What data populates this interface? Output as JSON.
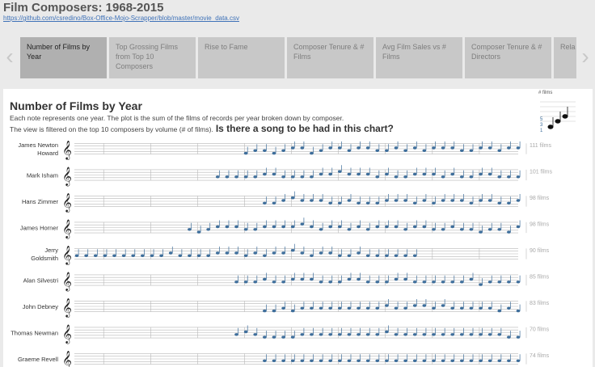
{
  "header": {
    "title": "Film Composers: 1968-2015",
    "link": "https://github.com/csredino/Box-Office-Mojo-Scrapper/blob/master/movie_data.csv"
  },
  "nav": {
    "prev_icon": "chevron-left-icon",
    "next_icon": "chevron-right-icon"
  },
  "tabs": [
    {
      "label": "Number of Films by Year",
      "active": true
    },
    {
      "label": "Top Grossing Films from Top 10 Composers",
      "active": false
    },
    {
      "label": "Rise to Fame",
      "active": false
    },
    {
      "label": "Composer Tenure & # Films",
      "active": false
    },
    {
      "label": "Avg Film Sales vs # Films",
      "active": false
    },
    {
      "label": "Composer Tenure & # Directors",
      "active": false
    },
    {
      "label": "Rela",
      "active": false
    }
  ],
  "viz": {
    "title": "Number of Films by Year",
    "subtitle1": "Each note represents one year. The plot is the sum of the films of records per year broken down by composer.",
    "subtitle2": "The view is filtered on the top 10 composers by volume (# of films).",
    "question": "Is there a song to be had in this chart?",
    "legend_title": "# films",
    "legend_ticks": [
      "5",
      "3",
      "1"
    ]
  },
  "colors": {
    "note": "#3e6e9b",
    "staff": "#b7b7b7",
    "accent": "#b0b0b0"
  },
  "chart_data": {
    "type": "scatter",
    "x_label": "",
    "y_label": "",
    "x_range": [
      1968,
      2015
    ],
    "series": [
      {
        "name": "James Newton Howard",
        "total_label": "111 films",
        "first_year": 1986,
        "last_year": 2015,
        "values": [
          1,
          2,
          2,
          1,
          2,
          3,
          3,
          1,
          2,
          3,
          3,
          2,
          3,
          3,
          2,
          2,
          3,
          2,
          3,
          2,
          3,
          3,
          3,
          2,
          2,
          3,
          3,
          2,
          3,
          3
        ]
      },
      {
        "name": "Mark Isham",
        "total_label": "101 films",
        "first_year": 1983,
        "last_year": 2015,
        "values": [
          2,
          2,
          2,
          2,
          2,
          3,
          3,
          2,
          2,
          2,
          2,
          3,
          3,
          4,
          3,
          3,
          3,
          2,
          3,
          2,
          2,
          3,
          3,
          3,
          2,
          3,
          2,
          2,
          3,
          3,
          2,
          2,
          2
        ]
      },
      {
        "name": "Hans Zimmer",
        "total_label": "98 films",
        "first_year": 1988,
        "last_year": 2015,
        "values": [
          2,
          2,
          3,
          4,
          3,
          3,
          3,
          2,
          2,
          3,
          2,
          2,
          2,
          3,
          3,
          3,
          2,
          3,
          2,
          3,
          3,
          3,
          2,
          3,
          3,
          2,
          2,
          3
        ]
      },
      {
        "name": "James Horner",
        "total_label": "98 films",
        "first_year": 1980,
        "last_year": 2015,
        "values": [
          2,
          1,
          2,
          3,
          3,
          3,
          2,
          2,
          3,
          3,
          3,
          3,
          4,
          3,
          2,
          3,
          3,
          2,
          3,
          2,
          3,
          3,
          3,
          2,
          3,
          3,
          2,
          2,
          3,
          2,
          2,
          1,
          2,
          2,
          1,
          3
        ]
      },
      {
        "name": "Jerry Goldsmith",
        "total_label": "90 films",
        "first_year": 1968,
        "last_year": 2004,
        "values": [
          2,
          2,
          2,
          2,
          2,
          2,
          2,
          2,
          2,
          2,
          3,
          2,
          2,
          2,
          2,
          3,
          3,
          3,
          2,
          3,
          2,
          3,
          3,
          4,
          3,
          2,
          3,
          3,
          2,
          2,
          3,
          2,
          2,
          2,
          2,
          2,
          2
        ]
      },
      {
        "name": "Alan Silvestri",
        "total_label": "85 films",
        "first_year": 1985,
        "last_year": 2015,
        "values": [
          2,
          2,
          2,
          3,
          2,
          2,
          3,
          3,
          3,
          2,
          2,
          2,
          3,
          3,
          2,
          2,
          2,
          3,
          3,
          2,
          2,
          2,
          2,
          2,
          2,
          3,
          1,
          2,
          2,
          2,
          2
        ]
      },
      {
        "name": "John Debney",
        "total_label": "83 films",
        "first_year": 1988,
        "last_year": 2015,
        "values": [
          1,
          1,
          2,
          1,
          2,
          2,
          2,
          2,
          2,
          2,
          2,
          2,
          2,
          3,
          2,
          2,
          3,
          3,
          2,
          3,
          2,
          2,
          2,
          2,
          2,
          1,
          2,
          1
        ]
      },
      {
        "name": "Thomas Newman",
        "total_label": "70 films",
        "first_year": 1985,
        "last_year": 2015,
        "values": [
          2,
          3,
          2,
          1,
          1,
          1,
          1,
          2,
          2,
          2,
          2,
          2,
          2,
          2,
          2,
          2,
          3,
          2,
          2,
          2,
          2,
          2,
          2,
          2,
          2,
          2,
          2,
          2,
          2,
          1,
          1
        ]
      },
      {
        "name": "Graeme Revell",
        "total_label": "74 films",
        "first_year": 1988,
        "last_year": 2015,
        "values": [
          2,
          2,
          2,
          2,
          2,
          2,
          2,
          2,
          2,
          2,
          2,
          2,
          2,
          2,
          2,
          2,
          2,
          2,
          2,
          2,
          2,
          2,
          2,
          2,
          2,
          2,
          2,
          2
        ]
      }
    ]
  }
}
